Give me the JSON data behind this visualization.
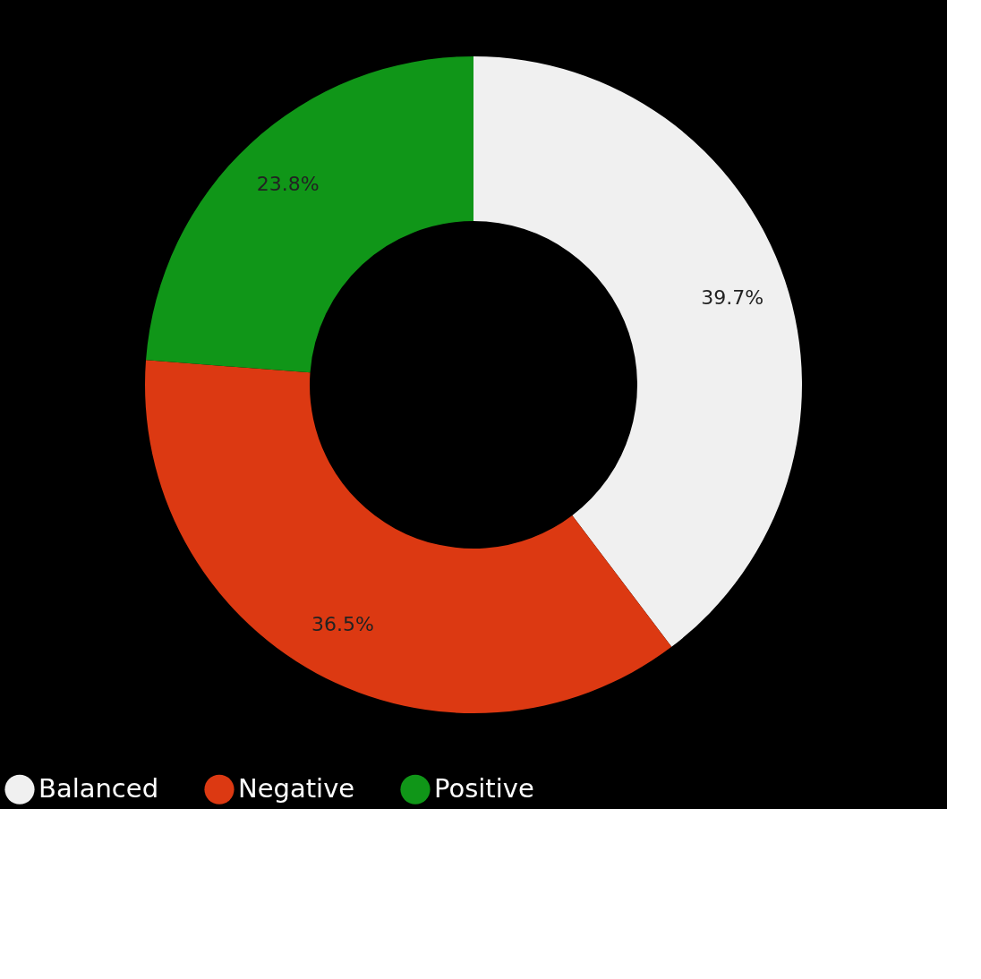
{
  "chart_data": {
    "type": "donut",
    "categories": [
      "Balanced",
      "Negative",
      "Positive"
    ],
    "values": [
      39.7,
      36.5,
      23.8
    ],
    "colors": [
      "#f0f0f0",
      "#dc3912",
      "#109618"
    ],
    "value_labels": [
      "39.7%",
      "36.5%",
      "23.8%"
    ],
    "legend": "bottom"
  }
}
